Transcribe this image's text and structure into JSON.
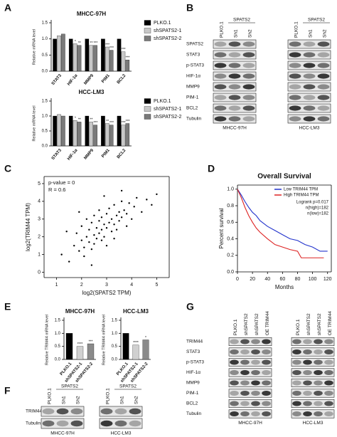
{
  "panels": [
    "A",
    "B",
    "C",
    "D",
    "E",
    "F",
    "G"
  ],
  "chart_data": [
    {
      "type": "bar",
      "title": "MHCC-97H",
      "y_label": "Relative mRNA level",
      "legend": "right",
      "categories": [
        "STAT3",
        "HIF-1α",
        "MMP9",
        "PIM1",
        "BCL2"
      ],
      "series": [
        {
          "name": "PLKO.1",
          "color": "#000000",
          "values": [
            1.0,
            1.0,
            1.0,
            1.0,
            1.0
          ],
          "significance": [
            null,
            null,
            null,
            null,
            null
          ]
        },
        {
          "name": "shSPATS2-1",
          "color": "#c8c8c8",
          "values": [
            1.1,
            0.85,
            0.8,
            0.75,
            0.6
          ],
          "significance": [
            null,
            "*",
            "**",
            "***",
            "***"
          ]
        },
        {
          "name": "shSPATS2-2",
          "color": "#7a7a7a",
          "values": [
            1.15,
            0.8,
            0.8,
            0.65,
            0.35
          ],
          "significance": [
            null,
            "**",
            "***",
            "***",
            "***"
          ]
        }
      ],
      "ylim": [
        0,
        1.5
      ],
      "yticks": [
        {
          "value": 0,
          "label": "0.0"
        },
        0.5,
        {
          "value": 1,
          "label": "1.0"
        },
        1.5
      ]
    },
    {
      "type": "bar",
      "title": "HCC-LM3",
      "y_label": "Relative mRNA level",
      "legend": "right",
      "categories": [
        "STAT3",
        "HIF-1α",
        "MMP9",
        "PIM1",
        "BCL2"
      ],
      "series": [
        {
          "name": "PLKO.1",
          "color": "#000000",
          "values": [
            1.0,
            1.0,
            1.0,
            1.0,
            1.0
          ],
          "significance": [
            null,
            null,
            null,
            null,
            null
          ]
        },
        {
          "name": "shSPATS2-1",
          "color": "#c8c8c8",
          "values": [
            1.05,
            0.85,
            0.8,
            0.75,
            0.7
          ],
          "significance": [
            null,
            "*",
            "**",
            "**",
            "***"
          ]
        },
        {
          "name": "shSPATS2-2",
          "color": "#7a7a7a",
          "values": [
            1.0,
            0.8,
            0.7,
            0.7,
            0.75
          ],
          "significance": [
            null,
            "**",
            "***",
            "***",
            "***"
          ]
        }
      ],
      "ylim": [
        0,
        1.5
      ],
      "yticks": [
        {
          "value": 0,
          "label": "0.0"
        },
        0.5,
        {
          "value": 1,
          "label": "1.0"
        },
        1.5
      ]
    },
    {
      "type": "scatter",
      "x_label": "log2(SPATS2 TPM)",
      "y_label": "log2(TRIM44 TPM)",
      "color": "#000000",
      "annotations": [
        "p-value = 0",
        "R = 0.6"
      ],
      "x": [
        1.2,
        1.5,
        1.7,
        1.8,
        1.9,
        2.0,
        2.0,
        2.1,
        2.2,
        2.2,
        2.3,
        2.3,
        2.4,
        2.4,
        2.5,
        2.5,
        2.5,
        2.6,
        2.6,
        2.7,
        2.7,
        2.7,
        2.8,
        2.8,
        2.8,
        2.9,
        2.9,
        3.0,
        3.0,
        3.0,
        3.1,
        3.1,
        3.2,
        3.2,
        3.3,
        3.3,
        3.4,
        3.4,
        3.5,
        3.5,
        3.6,
        3.6,
        3.7,
        3.8,
        3.9,
        4.0,
        4.1,
        4.2,
        4.4,
        4.6,
        4.8,
        5.0,
        1.4,
        2.1,
        2.9,
        3.3,
        3.8,
        2.4,
        1.9,
        3.6
      ],
      "values": [
        1.0,
        0.6,
        1.5,
        2.2,
        1.2,
        1.8,
        2.6,
        1.4,
        2.0,
        3.0,
        1.7,
        2.4,
        2.8,
        1.3,
        2.1,
        3.2,
        1.6,
        2.5,
        1.9,
        2.9,
        2.2,
        3.5,
        2.4,
        1.8,
        3.1,
        2.7,
        2.0,
        3.3,
        2.5,
        1.5,
        2.8,
        3.6,
        2.3,
        3.0,
        2.7,
        3.8,
        3.2,
        2.4,
        3.4,
        2.9,
        3.1,
        4.0,
        3.5,
        3.3,
        3.9,
        3.0,
        3.7,
        4.2,
        3.4,
        4.1,
        3.8,
        4.4,
        2.3,
        0.9,
        4.3,
        1.9,
        2.6,
        0.4,
        3.4,
        4.6
      ],
      "xlim": [
        0.5,
        5.5
      ],
      "xticks": [
        1,
        2,
        3,
        4,
        5
      ],
      "ylim": [
        -0.3,
        5.4
      ],
      "yticks": [
        0,
        1,
        2,
        3,
        4,
        5
      ]
    },
    {
      "type": "line",
      "title": "Overall Survival",
      "x_label": "Months",
      "y_label": "Percent survival",
      "legend": "top-right",
      "annotations": [
        "Logrank p=0.017",
        "n(high)=182",
        "n(low)=182"
      ],
      "series": [
        {
          "name": "Low TRIM44 TPM",
          "color": "#2233cc",
          "x": [
            0,
            5,
            10,
            15,
            20,
            25,
            30,
            40,
            50,
            60,
            70,
            80,
            90,
            100,
            110,
            120
          ],
          "values": [
            1,
            0.93,
            0.85,
            0.78,
            0.72,
            0.68,
            0.62,
            0.55,
            0.5,
            0.45,
            0.4,
            0.38,
            0.33,
            0.3,
            0.25,
            0.25
          ]
        },
        {
          "name": "High TRIM44 TPM",
          "color": "#dd2222",
          "x": [
            0,
            5,
            10,
            15,
            20,
            25,
            30,
            40,
            50,
            60,
            70,
            80,
            85,
            100,
            115
          ],
          "values": [
            1,
            0.9,
            0.78,
            0.68,
            0.6,
            0.53,
            0.48,
            0.4,
            0.33,
            0.3,
            0.27,
            0.25,
            0.17,
            0.17,
            0.17
          ]
        }
      ],
      "xlim": [
        0,
        125
      ],
      "xticks": [
        0,
        20,
        40,
        60,
        80,
        100,
        120
      ],
      "ylim": [
        0,
        1.05
      ],
      "yticks": [
        {
          "value": 0,
          "label": "0.0"
        },
        0.2,
        0.4,
        0.6,
        0.8,
        {
          "value": 1,
          "label": "1.0"
        }
      ]
    },
    {
      "type": "bar",
      "title": "MHCC-97H",
      "y_label": "Relative TRIM44 mRNA level",
      "categories": [
        "PLKO.1",
        "shSPATS2-1",
        "shSPATS2-2"
      ],
      "values": [
        1.0,
        0.5,
        0.6
      ],
      "colors": [
        "#000000",
        "#d0d0d0",
        "#8a8a8a"
      ],
      "significance": [
        null,
        "****",
        "***"
      ],
      "ylim": [
        0,
        1.5
      ],
      "yticks": [
        {
          "value": 0,
          "label": "0.0"
        },
        0.5,
        {
          "value": 1,
          "label": "1.0"
        },
        1.5
      ]
    },
    {
      "type": "bar",
      "title": "HCC-LM3",
      "y_label": "Relative TRIM44 mRNA level",
      "categories": [
        "PLKO.1",
        "shSPATS2-1",
        "shSPATS2-2"
      ],
      "values": [
        1.0,
        0.55,
        0.75
      ],
      "colors": [
        "#000000",
        "#d0d0d0",
        "#8a8a8a"
      ],
      "significance": [
        null,
        "****",
        "*"
      ],
      "ylim": [
        0,
        1.5
      ],
      "yticks": [
        {
          "value": 0,
          "label": "0.0"
        },
        0.5,
        {
          "value": 1,
          "label": "1.0"
        },
        1.5
      ]
    }
  ],
  "blots": [
    {
      "groups": [
        {
          "name": "MHCC-97H",
          "header": "SPATS2",
          "lanes": [
            "PLKO.1",
            "Sh1",
            "Sh2"
          ]
        },
        {
          "name": "HCC-LM3",
          "header": "SPATS2",
          "lanes": [
            "PLKO.1",
            "Sh1",
            "Sh2"
          ]
        }
      ],
      "rows": [
        "SPATS2",
        "STAT3",
        "p-STAT3",
        "HIF-1α",
        "MMP9",
        "PIM-1",
        "BCL2",
        "Tubulin"
      ]
    },
    {
      "groups": [
        {
          "name": "MHCC-97H",
          "header": "SPATS2",
          "lanes": [
            "PLKO.1",
            "Sh1",
            "Sh2"
          ]
        },
        {
          "name": "HCC-LM3",
          "header": "SPATS2",
          "lanes": [
            "PLKO.1",
            "Sh1",
            "Sh2"
          ]
        }
      ],
      "rows": [
        "TRIM44",
        "Tubulin"
      ]
    },
    {
      "groups": [
        {
          "name": "MHCC-97H",
          "lanes": [
            "PLKO.1",
            "shSPATS2",
            "shSPATS2",
            "OE TRIM44"
          ]
        },
        {
          "name": "HCC-LM3",
          "lanes": [
            "PLKO.1",
            "shSPATS2",
            "shSPATS2",
            "OE TRIM44"
          ]
        }
      ],
      "rows": [
        "TRIM44",
        "STAT3",
        "p-STAT3",
        "HIF-1α",
        "MMP9",
        "PIM-1",
        "BCL2",
        "Tubulin"
      ]
    }
  ]
}
